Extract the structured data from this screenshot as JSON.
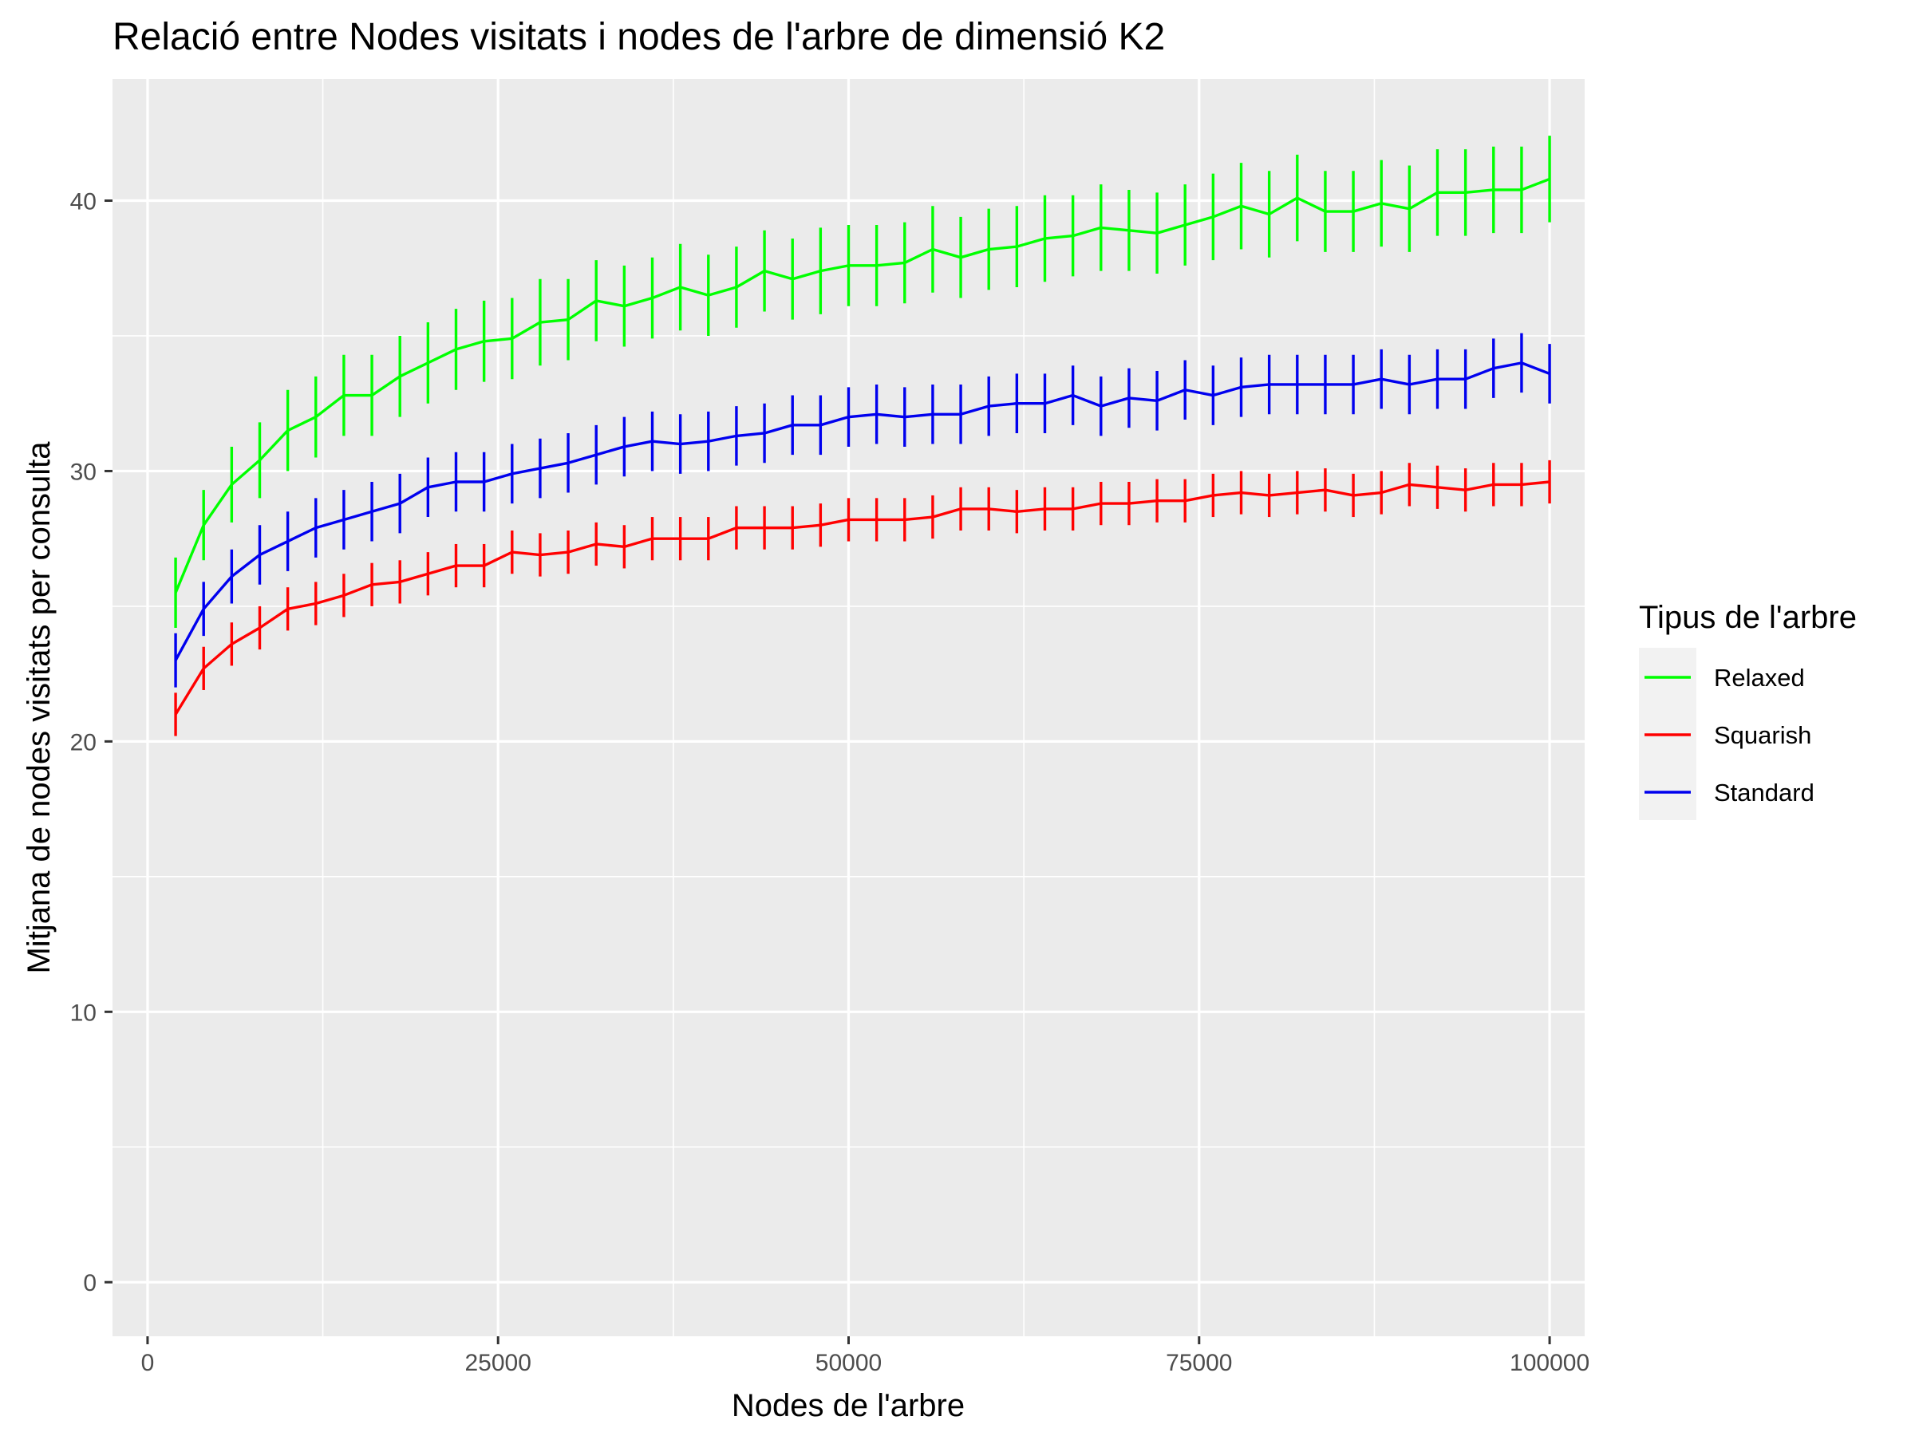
{
  "chart_data": {
    "type": "line",
    "title": "Relació entre Nodes visitats i nodes de l'arbre de dimensió K2",
    "xlabel": "Nodes de l'arbre",
    "ylabel": "Mitjana de nodes visitats per consulta",
    "xlim": [
      -2500,
      102500
    ],
    "ylim": [
      -2,
      44.5
    ],
    "x_ticks": [
      0,
      25000,
      50000,
      75000,
      100000
    ],
    "x_tick_labels": [
      "0",
      "25000",
      "50000",
      "75000",
      "100000"
    ],
    "y_ticks": [
      0,
      10,
      20,
      30,
      40
    ],
    "y_tick_labels": [
      "0",
      "10",
      "20",
      "30",
      "40"
    ],
    "grid": true,
    "error_bars": true,
    "legend": {
      "title": "Tipus de l'arbre",
      "position": "right"
    },
    "x": [
      2000,
      4000,
      6000,
      8000,
      10000,
      12000,
      14000,
      16000,
      18000,
      20000,
      22000,
      24000,
      26000,
      28000,
      30000,
      32000,
      34000,
      36000,
      38000,
      40000,
      42000,
      44000,
      46000,
      48000,
      50000,
      52000,
      54000,
      56000,
      58000,
      60000,
      62000,
      64000,
      66000,
      68000,
      70000,
      72000,
      74000,
      76000,
      78000,
      80000,
      82000,
      84000,
      86000,
      88000,
      90000,
      92000,
      94000,
      96000,
      98000,
      100000
    ],
    "series": [
      {
        "name": "Relaxed",
        "color": "#00ff00",
        "values": [
          25.5,
          28.0,
          29.5,
          30.4,
          31.5,
          32.0,
          32.8,
          32.8,
          33.5,
          34.0,
          34.5,
          34.8,
          34.9,
          35.5,
          35.6,
          36.3,
          36.1,
          36.4,
          36.8,
          36.5,
          36.8,
          37.4,
          37.1,
          37.4,
          37.6,
          37.6,
          37.7,
          38.2,
          37.9,
          38.2,
          38.3,
          38.6,
          38.7,
          39.0,
          38.9,
          38.8,
          39.1,
          39.4,
          39.8,
          39.5,
          40.1,
          39.6,
          39.6,
          39.9,
          39.7,
          40.3,
          40.3,
          40.4,
          40.4,
          40.8
        ],
        "errors": [
          1.3,
          1.3,
          1.4,
          1.4,
          1.5,
          1.5,
          1.5,
          1.5,
          1.5,
          1.5,
          1.5,
          1.5,
          1.5,
          1.6,
          1.5,
          1.5,
          1.5,
          1.5,
          1.6,
          1.5,
          1.5,
          1.5,
          1.5,
          1.6,
          1.5,
          1.5,
          1.5,
          1.6,
          1.5,
          1.5,
          1.5,
          1.6,
          1.5,
          1.6,
          1.5,
          1.5,
          1.5,
          1.6,
          1.6,
          1.6,
          1.6,
          1.5,
          1.5,
          1.6,
          1.6,
          1.6,
          1.6,
          1.6,
          1.6,
          1.6
        ]
      },
      {
        "name": "Squarish",
        "color": "#ff0000",
        "values": [
          21.0,
          22.7,
          23.6,
          24.2,
          24.9,
          25.1,
          25.4,
          25.8,
          25.9,
          26.2,
          26.5,
          26.5,
          27.0,
          26.9,
          27.0,
          27.3,
          27.2,
          27.5,
          27.5,
          27.5,
          27.9,
          27.9,
          27.9,
          28.0,
          28.2,
          28.2,
          28.2,
          28.3,
          28.6,
          28.6,
          28.5,
          28.6,
          28.6,
          28.8,
          28.8,
          28.9,
          28.9,
          29.1,
          29.2,
          29.1,
          29.2,
          29.3,
          29.1,
          29.2,
          29.5,
          29.4,
          29.3,
          29.5,
          29.5,
          29.6
        ],
        "errors": [
          0.8,
          0.8,
          0.8,
          0.8,
          0.8,
          0.8,
          0.8,
          0.8,
          0.8,
          0.8,
          0.8,
          0.8,
          0.8,
          0.8,
          0.8,
          0.8,
          0.8,
          0.8,
          0.8,
          0.8,
          0.8,
          0.8,
          0.8,
          0.8,
          0.8,
          0.8,
          0.8,
          0.8,
          0.8,
          0.8,
          0.8,
          0.8,
          0.8,
          0.8,
          0.8,
          0.8,
          0.8,
          0.8,
          0.8,
          0.8,
          0.8,
          0.8,
          0.8,
          0.8,
          0.8,
          0.8,
          0.8,
          0.8,
          0.8,
          0.8
        ]
      },
      {
        "name": "Standard",
        "color": "#0000ee",
        "values": [
          23.0,
          24.9,
          26.1,
          26.9,
          27.4,
          27.9,
          28.2,
          28.5,
          28.8,
          29.4,
          29.6,
          29.6,
          29.9,
          30.1,
          30.3,
          30.6,
          30.9,
          31.1,
          31.0,
          31.1,
          31.3,
          31.4,
          31.7,
          31.7,
          32.0,
          32.1,
          32.0,
          32.1,
          32.1,
          32.4,
          32.5,
          32.5,
          32.8,
          32.4,
          32.7,
          32.6,
          33.0,
          32.8,
          33.1,
          33.2,
          33.2,
          33.2,
          33.2,
          33.4,
          33.2,
          33.4,
          33.4,
          33.8,
          34.0,
          33.6
        ],
        "errors": [
          1.0,
          1.0,
          1.0,
          1.1,
          1.1,
          1.1,
          1.1,
          1.1,
          1.1,
          1.1,
          1.1,
          1.1,
          1.1,
          1.1,
          1.1,
          1.1,
          1.1,
          1.1,
          1.1,
          1.1,
          1.1,
          1.1,
          1.1,
          1.1,
          1.1,
          1.1,
          1.1,
          1.1,
          1.1,
          1.1,
          1.1,
          1.1,
          1.1,
          1.1,
          1.1,
          1.1,
          1.1,
          1.1,
          1.1,
          1.1,
          1.1,
          1.1,
          1.1,
          1.1,
          1.1,
          1.1,
          1.1,
          1.1,
          1.1,
          1.1
        ]
      }
    ]
  }
}
